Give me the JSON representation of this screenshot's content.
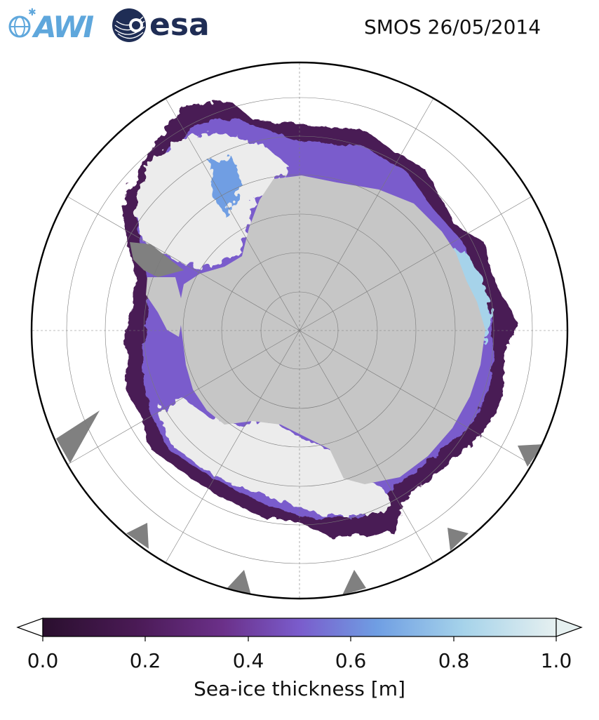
{
  "title": "SMOS 26/05/2014",
  "logos": {
    "awi": "AWI",
    "esa": "esa"
  },
  "colorbar": {
    "label": "Sea-ice thickness [m]",
    "ticks": [
      "0.0",
      "0.2",
      "0.4",
      "0.6",
      "0.8",
      "1.0"
    ],
    "range": [
      0.0,
      1.0
    ],
    "extend": "both",
    "colormap": [
      "#2a0f2e",
      "#4a1a55",
      "#6b3089",
      "#7a5ccc",
      "#6f9ee3",
      "#a6d3ea",
      "#e6f0f0"
    ]
  },
  "map": {
    "projection": "south-polar-stereographic",
    "land_color": "#c6c6c6",
    "missing_data_color": "#808080",
    "thick_ice_color": "#ececec",
    "gridlines": true
  }
}
